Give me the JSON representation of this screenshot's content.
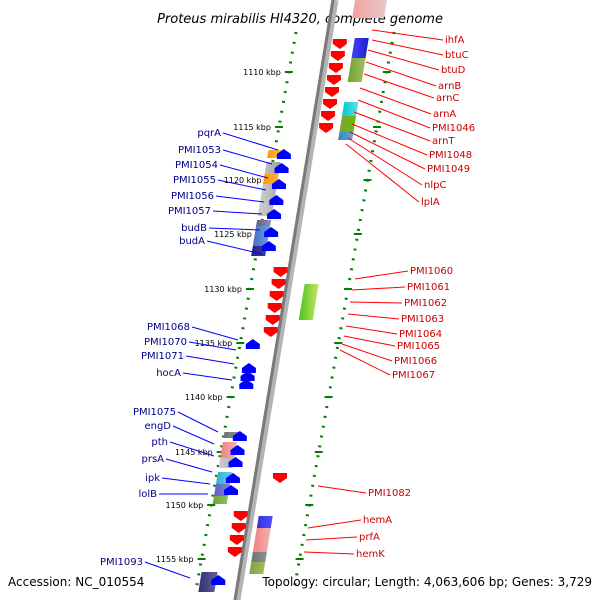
{
  "title": "Proteus mirabilis HI4320, complete genome",
  "footer": {
    "accession": "Accession: NC_010554",
    "topology": "Topology: circular; Length: 4,063,606 bp; Genes: 3,729"
  },
  "colors": {
    "forward_strand": "#ff0000",
    "reverse_strand": "#0000ff",
    "forward_label": "#cc0000",
    "reverse_label": "#00008b",
    "tick": "#008000",
    "backbone": "#808080"
  },
  "ticks": [
    "1110 kbp",
    "1115 kbp",
    "1120 kbp",
    "1125 kbp",
    "1130 kbp",
    "1135 kbp",
    "1140 kbp",
    "1145 kbp",
    "1150 kbp",
    "1155 kbp"
  ],
  "forward_genes": [
    "ihfA",
    "btuC",
    "btuD",
    "arnB",
    "arnC",
    "arnA",
    "PMI1046",
    "arnT",
    "PMI1048",
    "PMI1049",
    "nlpC",
    "lplA",
    "PMI1060",
    "PMI1061",
    "PMI1062",
    "PMI1063",
    "PMI1064",
    "PMI1065",
    "PMI1066",
    "PMI1067",
    "PMI1082",
    "hemA",
    "prfA",
    "hemK"
  ],
  "reverse_genes": [
    "pqrA",
    "PMI1053",
    "PMI1054",
    "PMI1055",
    "PMI1056",
    "PMI1057",
    "budB",
    "budA",
    "PMI1068",
    "PMI1070",
    "PMI1071",
    "hocA",
    "PMI1075",
    "engD",
    "pth",
    "prsA",
    "ipk",
    "lolB",
    "PMI1093"
  ]
}
